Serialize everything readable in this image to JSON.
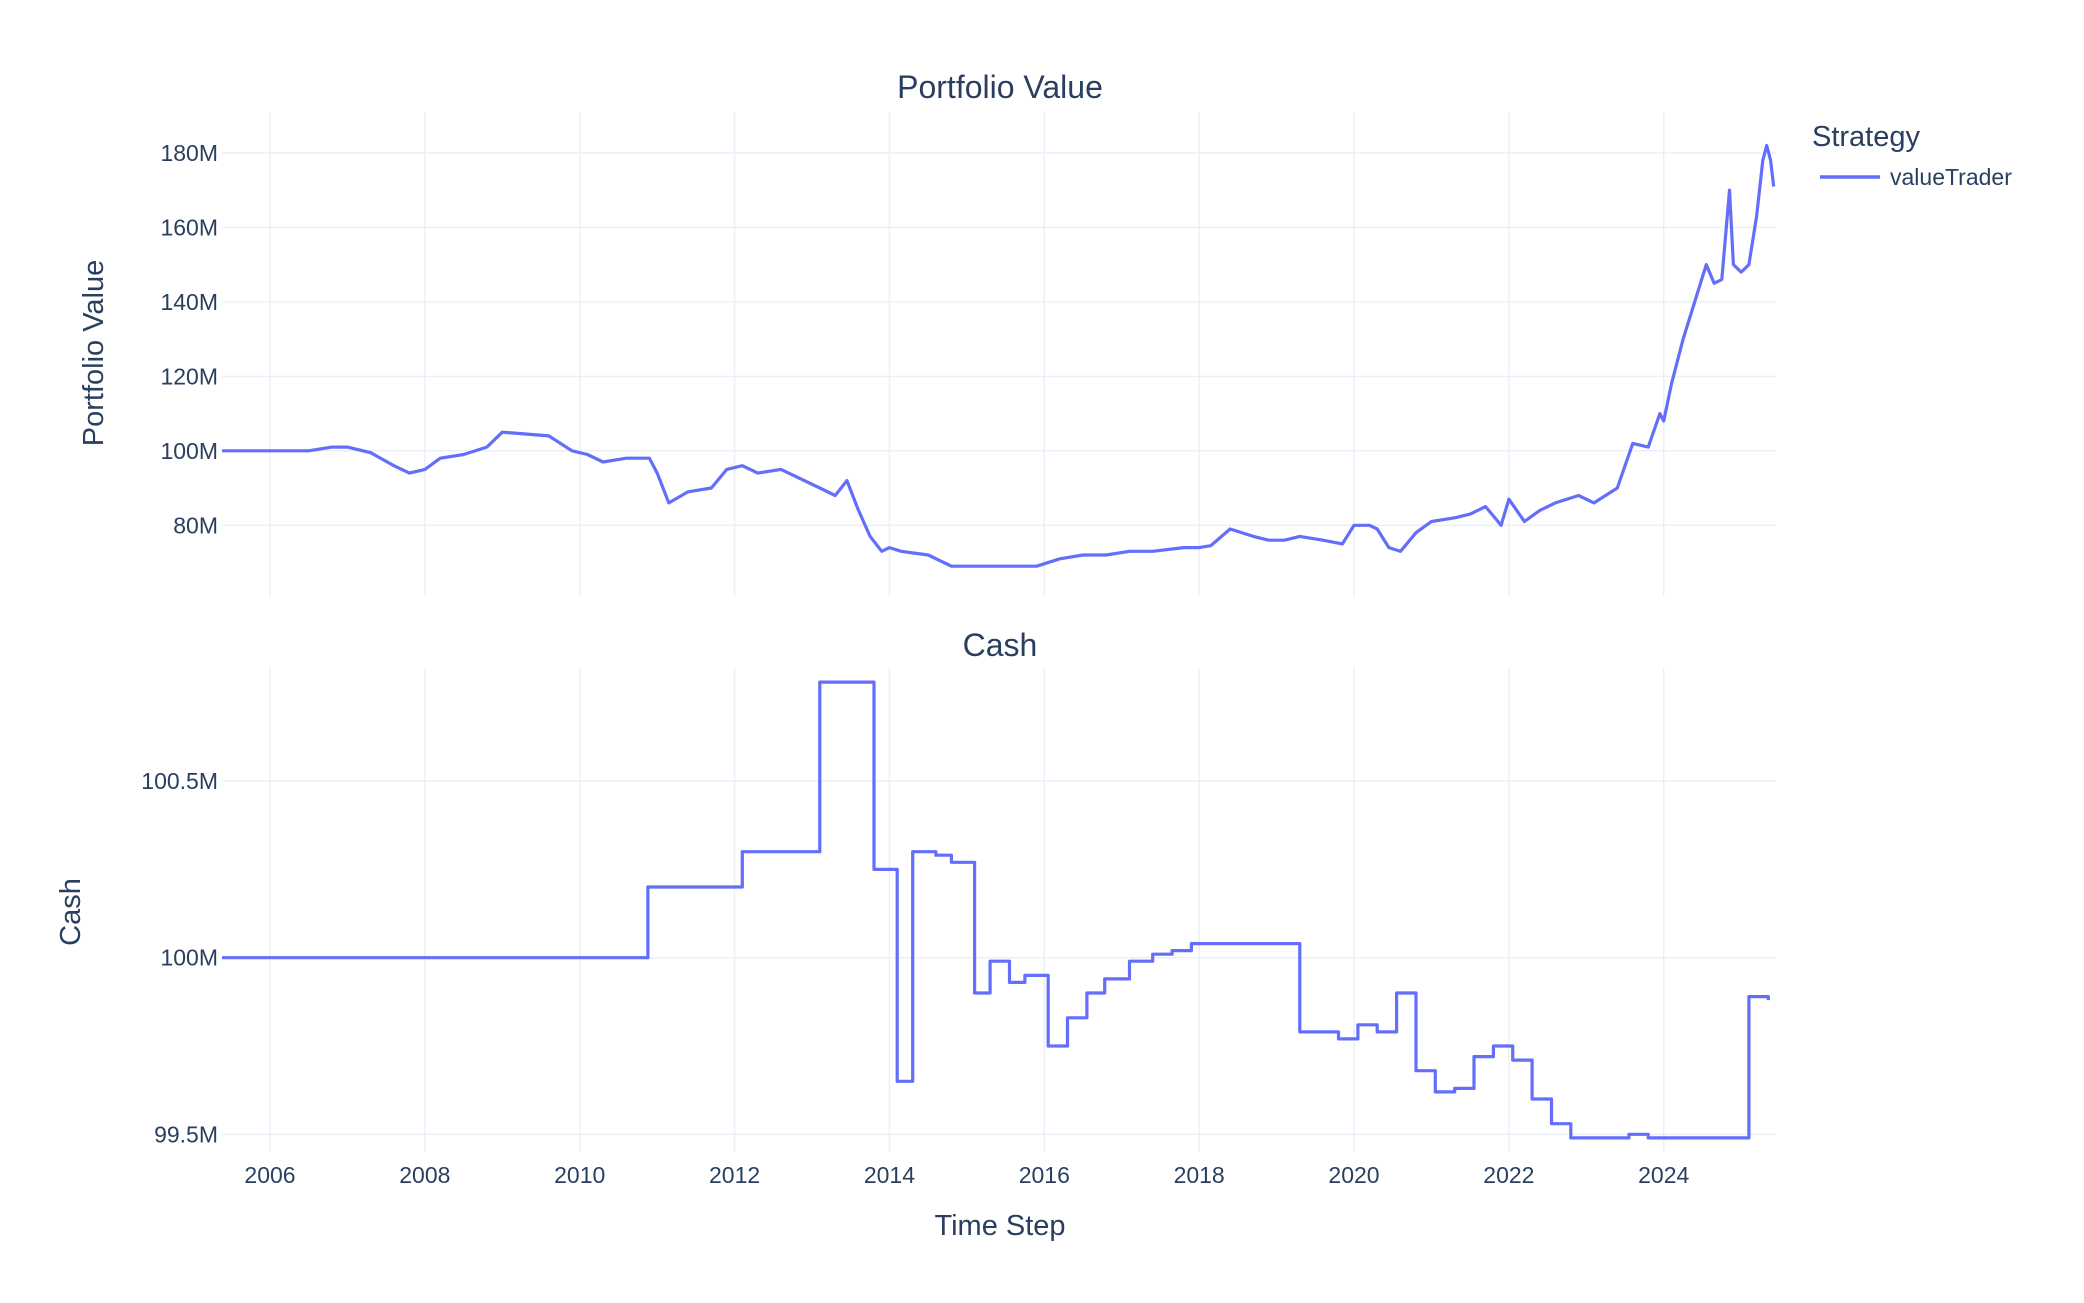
{
  "colors": {
    "line": "#636efa",
    "grid": "#ebf0f8",
    "text": "#2a3f5f"
  },
  "legend": {
    "title": "Strategy",
    "placement": "top-right",
    "items": [
      "valueTrader"
    ]
  },
  "x_axis": {
    "label": "Time Step",
    "ticks": [
      "2006",
      "2008",
      "2010",
      "2012",
      "2014",
      "2016",
      "2018",
      "2020",
      "2022",
      "2024"
    ],
    "range": [
      2005.38,
      2025.45
    ]
  },
  "chart_data": [
    {
      "type": "line",
      "title": "Portfolio Value",
      "xlabel": "",
      "ylabel": "Portfolio Value",
      "grid": true,
      "ylim": [
        61,
        191
      ],
      "y_ticks": [
        {
          "value": 80,
          "label": "80M"
        },
        {
          "value": 100,
          "label": "100M"
        },
        {
          "value": 120,
          "label": "120M"
        },
        {
          "value": 140,
          "label": "140M"
        },
        {
          "value": 160,
          "label": "160M"
        },
        {
          "value": 180,
          "label": "180M"
        }
      ],
      "series": [
        {
          "name": "valueTrader",
          "x": [
            2005.38,
            2006.0,
            2006.5,
            2006.8,
            2007.0,
            2007.3,
            2007.6,
            2007.8,
            2008.0,
            2008.2,
            2008.5,
            2008.8,
            2009.0,
            2009.3,
            2009.6,
            2009.9,
            2010.1,
            2010.3,
            2010.6,
            2010.9,
            2011.0,
            2011.15,
            2011.4,
            2011.7,
            2011.9,
            2012.1,
            2012.3,
            2012.6,
            2012.9,
            2013.1,
            2013.3,
            2013.45,
            2013.6,
            2013.75,
            2013.9,
            2014.0,
            2014.15,
            2014.5,
            2014.8,
            2015.0,
            2015.3,
            2015.6,
            2015.9,
            2016.2,
            2016.5,
            2016.8,
            2017.1,
            2017.4,
            2017.8,
            2018.0,
            2018.15,
            2018.4,
            2018.7,
            2018.9,
            2019.1,
            2019.3,
            2019.6,
            2019.85,
            2020.0,
            2020.2,
            2020.3,
            2020.45,
            2020.6,
            2020.8,
            2021.0,
            2021.3,
            2021.5,
            2021.7,
            2021.9,
            2022.0,
            2022.2,
            2022.4,
            2022.6,
            2022.9,
            2023.1,
            2023.4,
            2023.6,
            2023.8,
            2023.95,
            2024.0,
            2024.1,
            2024.25,
            2024.4,
            2024.55,
            2024.65,
            2024.75,
            2024.85,
            2024.9,
            2025.0,
            2025.1,
            2025.2,
            2025.28,
            2025.33,
            2025.38,
            2025.42
          ],
          "values": [
            100,
            100,
            100,
            101,
            101,
            99.5,
            96,
            94,
            95,
            98,
            99,
            101,
            105,
            104.5,
            104,
            100,
            99,
            97,
            98,
            98,
            94,
            86,
            89,
            90,
            95,
            96,
            94,
            95,
            92,
            90,
            88,
            92,
            84,
            77,
            73,
            74,
            73,
            72,
            69,
            69,
            69,
            69,
            69,
            71,
            72,
            72,
            73,
            73,
            74,
            74,
            74.5,
            79,
            77,
            76,
            76,
            77,
            76,
            75,
            80,
            80,
            79,
            74,
            73,
            78,
            81,
            82,
            83,
            85,
            80,
            87,
            81,
            84,
            86,
            88,
            86,
            90,
            102,
            101,
            110,
            108,
            118,
            130,
            140,
            150,
            145,
            146,
            170,
            150,
            148,
            150,
            163,
            178,
            182,
            178,
            171
          ]
        }
      ]
    },
    {
      "type": "line",
      "title": "Cash",
      "xlabel": "Time Step",
      "ylabel": "Cash",
      "grid": true,
      "step": true,
      "ylim": [
        99.45,
        100.82
      ],
      "y_ticks": [
        {
          "value": 99.5,
          "label": "99.5M"
        },
        {
          "value": 100,
          "label": "100M"
        },
        {
          "value": 100.5,
          "label": "100.5M"
        }
      ],
      "series": [
        {
          "name": "valueTrader",
          "x": [
            2005.38,
            2010.88,
            2012.1,
            2013.1,
            2013.8,
            2014.1,
            2014.3,
            2014.6,
            2014.8,
            2015.1,
            2015.3,
            2015.55,
            2015.75,
            2016.05,
            2016.3,
            2016.55,
            2016.78,
            2017.1,
            2017.4,
            2017.65,
            2017.9,
            2019.3,
            2019.8,
            2020.05,
            2020.3,
            2020.55,
            2020.8,
            2021.05,
            2021.3,
            2021.55,
            2021.8,
            2022.05,
            2022.3,
            2022.55,
            2022.8,
            2023.55,
            2023.8,
            2025.1,
            2025.35
          ],
          "values": [
            100.0,
            100.2,
            100.3,
            100.78,
            100.25,
            99.65,
            100.3,
            100.29,
            100.27,
            99.9,
            99.99,
            99.93,
            99.95,
            99.75,
            99.83,
            99.9,
            99.94,
            99.99,
            100.01,
            100.02,
            100.04,
            99.79,
            99.77,
            99.81,
            99.79,
            99.9,
            99.68,
            99.62,
            99.63,
            99.72,
            99.75,
            99.71,
            99.6,
            99.53,
            99.49,
            99.5,
            99.49,
            99.89,
            99.88
          ]
        }
      ]
    }
  ]
}
